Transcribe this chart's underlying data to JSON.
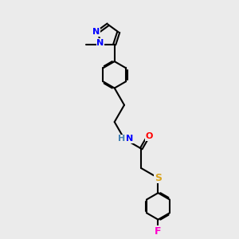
{
  "bg_color": "#ebebeb",
  "bond_color": "#000000",
  "bond_width": 1.5,
  "atom_colors": {
    "N": "#0000FF",
    "NH": "#4682B4",
    "O": "#FF0000",
    "S": "#DAA520",
    "F": "#FF00CC"
  },
  "font_size": 8.5
}
